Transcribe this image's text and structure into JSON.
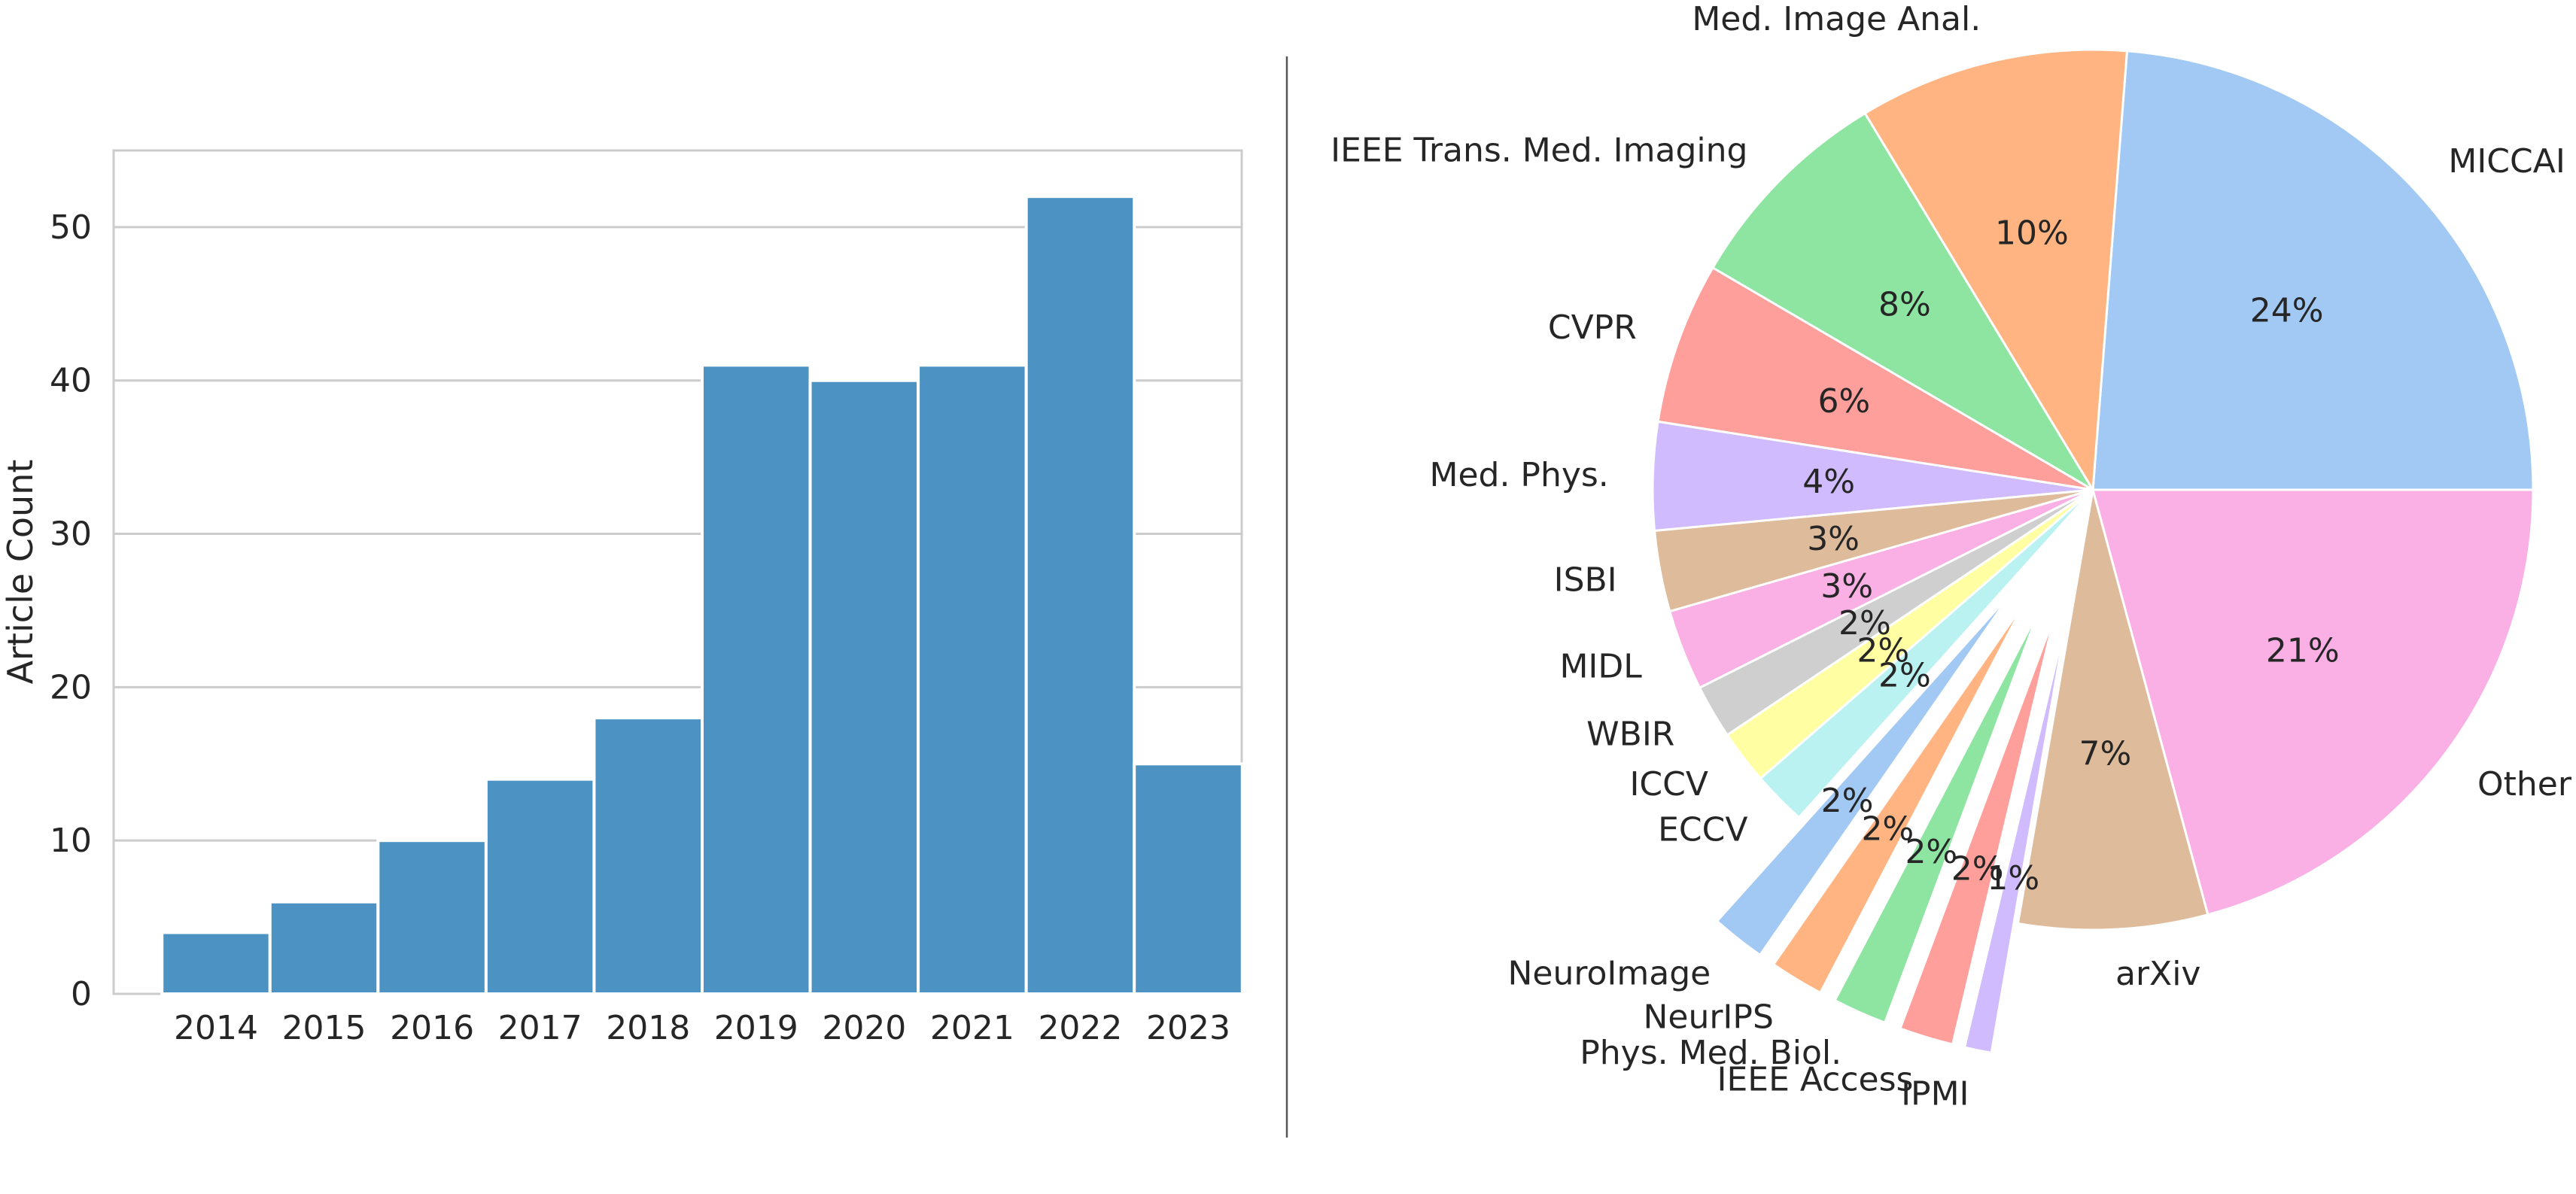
{
  "chart_data": [
    {
      "type": "bar",
      "title": "",
      "xlabel": "",
      "ylabel": "Article Count",
      "categories": [
        "2014",
        "2015",
        "2016",
        "2017",
        "2018",
        "2019",
        "2020",
        "2021",
        "2022",
        "2023"
      ],
      "values": [
        4,
        6,
        10,
        14,
        18,
        41,
        40,
        41,
        52,
        15
      ],
      "ylim": [
        0,
        55
      ],
      "yticks": [
        0,
        10,
        20,
        30,
        40,
        50
      ],
      "grid": "horizontal",
      "bar_color": "#4c92c3"
    },
    {
      "type": "pie",
      "title": "",
      "start_angle_deg": 0,
      "direction": "counterclockwise",
      "slices": [
        {
          "label": "MICCAI",
          "value": 24,
          "pct": "24%",
          "color": "#a1c9f4",
          "explode": false
        },
        {
          "label": "Med. Image Anal.",
          "value": 10,
          "pct": "10%",
          "color": "#ffb482",
          "explode": false
        },
        {
          "label": "IEEE Trans. Med. Imaging",
          "value": 8,
          "pct": "8%",
          "color": "#8de5a1",
          "explode": false
        },
        {
          "label": "CVPR",
          "value": 6,
          "pct": "6%",
          "color": "#ff9f9b",
          "explode": false
        },
        {
          "label": "Med. Phys.",
          "value": 4,
          "pct": "4%",
          "color": "#d0bbff",
          "explode": false
        },
        {
          "label": "ISBI",
          "value": 3,
          "pct": "3%",
          "color": "#debb9b",
          "explode": false
        },
        {
          "label": "MIDL",
          "value": 3,
          "pct": "3%",
          "color": "#fab0e4",
          "explode": false
        },
        {
          "label": "WBIR",
          "value": 2,
          "pct": "2%",
          "color": "#cfcfcf",
          "explode": false
        },
        {
          "label": "ICCV",
          "value": 2,
          "pct": "2%",
          "color": "#fffea3",
          "explode": false
        },
        {
          "label": "ECCV",
          "value": 2,
          "pct": "2%",
          "color": "#b9f2f0",
          "explode": false
        },
        {
          "label": "NeuroImage",
          "value": 2,
          "pct": "2%",
          "color": "#a1c9f4",
          "explode": true
        },
        {
          "label": "NeurIPS",
          "value": 2,
          "pct": "2%",
          "color": "#ffb482",
          "explode": true
        },
        {
          "label": "Phys. Med. Biol.",
          "value": 2,
          "pct": "2%",
          "color": "#8de5a1",
          "explode": true
        },
        {
          "label": "IEEE Access",
          "value": 2,
          "pct": "2%",
          "color": "#ff9f9b",
          "explode": true
        },
        {
          "label": "IPMI",
          "value": 1,
          "pct": "1%",
          "color": "#d0bbff",
          "explode": true
        },
        {
          "label": "arXiv",
          "value": 7,
          "pct": "7%",
          "color": "#debb9b",
          "explode": false
        },
        {
          "label": "Other",
          "value": 21,
          "pct": "21%",
          "color": "#fab0e4",
          "explode": false
        }
      ]
    }
  ],
  "divider_color": "#555555",
  "grid_color": "#cccccc",
  "text_color": "#262626"
}
